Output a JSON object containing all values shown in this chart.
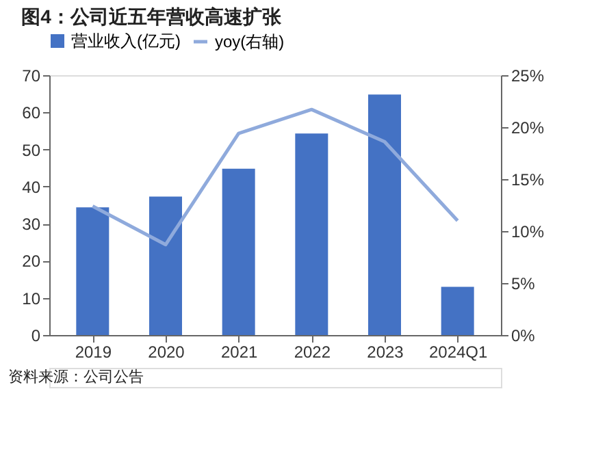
{
  "chart_data": {
    "type": "bar",
    "title": "图4：公司近五年营收高速扩张",
    "categories": [
      "2019",
      "2020",
      "2021",
      "2022",
      "2023",
      "2024Q1"
    ],
    "series": [
      {
        "name": "营业收入(亿元)",
        "color": "#4472c4",
        "values": [
          34.4,
          37.3,
          44.8,
          54.3,
          64.8,
          13.0
        ]
      },
      {
        "name": "yoy(右轴)",
        "type": "line",
        "axis": "y2",
        "color": "#8faadc",
        "values": [
          12.4,
          8.7,
          19.4,
          21.7,
          18.6,
          11.0
        ]
      }
    ],
    "ylim": [
      0,
      70
    ],
    "yticks": [
      0,
      10,
      20,
      30,
      40,
      50,
      60,
      70
    ],
    "y2lim": [
      0,
      25
    ],
    "y2ticks": [
      {
        "value": 0,
        "label": "0%"
      },
      {
        "value": 5,
        "label": "5%"
      },
      {
        "value": 10,
        "label": "10%"
      },
      {
        "value": 15,
        "label": "15%"
      },
      {
        "value": 20,
        "label": "20%"
      },
      {
        "value": 25,
        "label": "25%"
      }
    ],
    "legend": "top",
    "grid": false,
    "marker": "none",
    "line_style": "solid",
    "annotations": [
      "资料来源：公司公告"
    ]
  }
}
